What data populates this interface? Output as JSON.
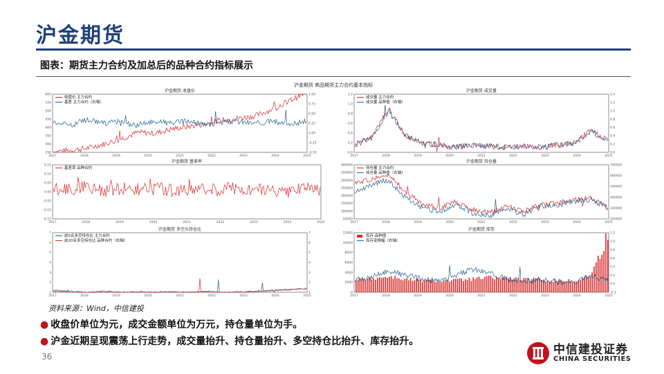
{
  "slide": {
    "title": "沪金期货",
    "caption": "图表：期货主力合约及加总后的品种合约指标展示",
    "source": "资料来源：Wind，中信建投",
    "bullets": [
      "收盘价单位为元，成交金额单位为万元，持仓量单位为手。",
      "沪金近期呈现震荡上行走势，成交量抬升、持仓量抬升、多空持仓比抬升、库存抬升。"
    ],
    "page_number": "36"
  },
  "logo": {
    "name_cn": "中信建投证券",
    "name_en": "CHINA SECURITIES",
    "color": "#c0121d"
  },
  "colors": {
    "title": "#1f3f7a",
    "red": "#d62728",
    "blue": "#1f5f8b"
  },
  "figure": {
    "suptitle": "沪金期货  商品期货主力合约基本指标"
  },
  "chart_data": [
    {
      "type": "line",
      "title": "沪金期货 收盘价",
      "x_ticks": [
        "2017",
        "2018",
        "2019",
        "2020",
        "2021",
        "2022",
        "2023",
        "2024",
        "2025"
      ],
      "y_ticks_left": [
        "600",
        "550",
        "500",
        "450",
        "400",
        "350",
        "300",
        "250"
      ],
      "y_ticks_right": [
        "1.00",
        "0.75",
        "0.50",
        "0.25",
        "0.00",
        "-0.25",
        "-0.50"
      ],
      "series": [
        {
          "name": "收盘价 主力合约",
          "axis": "left",
          "color": "#d62728",
          "trend": [
            255,
            262,
            275,
            300,
            330,
            370,
            365,
            390,
            405,
            420,
            445,
            455,
            470,
            510,
            560,
            610
          ]
        },
        {
          "name": "基差 主力合约（右轴）",
          "axis": "right",
          "color": "#1f5f8b",
          "trend": [
            0.3,
            0.2,
            0.35,
            0.25,
            0.3,
            0.2,
            0.3,
            0.25,
            0.3,
            0.2,
            0.28,
            0.3,
            0.25,
            0.3,
            0.22,
            0.3
          ]
        }
      ]
    },
    {
      "type": "line",
      "title": "沪金期货 成交量",
      "x_ticks": [
        "2017",
        "2018",
        "2019",
        "2020",
        "2021",
        "2022",
        "2023",
        "2024",
        "2025"
      ],
      "y_ticks_left": [
        "1.2",
        "1.0",
        "0.8",
        "0.6",
        "0.4",
        "0.2",
        "0.0"
      ],
      "y_ticks_right": [
        "1.4",
        "1.2",
        "1.0",
        "0.8",
        "0.6",
        "0.4",
        "0.2",
        "0.0"
      ],
      "series": [
        {
          "name": "成交量 主力合约",
          "axis": "left",
          "color": "#d62728",
          "trend": [
            0.15,
            0.3,
            0.9,
            0.35,
            0.2,
            0.15,
            0.1,
            0.15,
            0.12,
            0.1,
            0.12,
            0.1,
            0.15,
            0.2,
            0.45,
            0.25
          ]
        },
        {
          "name": "成交量 品种值（右轴）",
          "axis": "right",
          "color": "#1f5f8b",
          "trend": [
            0.18,
            0.35,
            1.0,
            0.4,
            0.22,
            0.18,
            0.12,
            0.18,
            0.15,
            0.12,
            0.14,
            0.12,
            0.18,
            0.22,
            0.5,
            0.28
          ]
        }
      ]
    },
    {
      "type": "line",
      "title": "沪金期货 基差率",
      "x_ticks": [
        "2017",
        "2018",
        "2019",
        "2020",
        "2021",
        "2022",
        "2023",
        "2024",
        "2025"
      ],
      "y_ticks_left": [
        "0.15",
        "0.10",
        "0.05",
        "0.00",
        "-0.05",
        "-0.10",
        "-0.15"
      ],
      "series": [
        {
          "name": "基差率 品种合约",
          "axis": "left",
          "color": "#d62728",
          "trend": [
            0.02,
            0.01,
            0.03,
            0.0,
            0.02,
            0.01,
            0.02,
            0.0,
            0.02,
            0.01,
            0.02,
            0.01,
            0.02,
            0.0,
            0.02,
            0.01
          ]
        }
      ]
    },
    {
      "type": "line",
      "title": "沪金期货 持仓量",
      "x_ticks": [
        "2017",
        "2018",
        "2019",
        "2020",
        "2021",
        "2022",
        "2023",
        "2024",
        "2025"
      ],
      "y_ticks_left": [
        "400000",
        "350000",
        "300000",
        "250000",
        "200000",
        "150000",
        "100000",
        "50000"
      ],
      "y_ticks_right": [
        "700000",
        "600000",
        "500000",
        "400000",
        "300000",
        "200000"
      ],
      "series": [
        {
          "name": "持仓量 主力合约",
          "axis": "left",
          "color": "#d62728",
          "trend": [
            280000,
            310000,
            340000,
            220000,
            150000,
            120000,
            160000,
            110000,
            90000,
            130000,
            100000,
            140000,
            150000,
            170000,
            190000,
            120000
          ]
        },
        {
          "name": "持仓量 品种值（右轴）",
          "axis": "right",
          "color": "#1f5f8b",
          "trend": [
            450000,
            520000,
            560000,
            400000,
            300000,
            260000,
            330000,
            250000,
            230000,
            300000,
            240000,
            320000,
            330000,
            360000,
            380000,
            300000
          ]
        }
      ]
    },
    {
      "type": "line",
      "title": "沪金期货 多空头持仓比",
      "x_ticks": [
        "2017",
        "2018",
        "2019",
        "2020",
        "2021",
        "2022",
        "2023",
        "2024",
        "2025"
      ],
      "y_ticks_left": [
        "7",
        "6",
        "5",
        "4",
        "3",
        "2",
        "1"
      ],
      "y_ticks_right": [
        "7",
        "6",
        "5",
        "4",
        "3",
        "2",
        "1"
      ],
      "series": [
        {
          "name": "前5名多空持仓比 主力合约",
          "axis": "left",
          "color": "#1f5f8b",
          "trend": [
            1.2,
            1.1,
            1.0,
            1.1,
            1.0,
            1.05,
            1.0,
            1.05,
            1.0,
            1.1,
            1.0,
            1.05,
            1.1,
            1.2,
            1.3,
            1.4
          ]
        },
        {
          "name": "前20名多空持仓比 品种合约（右轴）",
          "axis": "right",
          "color": "#d62728",
          "trend": [
            1.1,
            1.05,
            1.0,
            1.05,
            1.0,
            1.0,
            1.0,
            1.0,
            1.0,
            1.05,
            1.0,
            1.0,
            1.05,
            1.15,
            1.25,
            1.35
          ]
        }
      ]
    },
    {
      "type": "bar",
      "title": "沪金期货 库存",
      "x_ticks": [
        "2017",
        "2018",
        "2019",
        "2020",
        "2021",
        "2022",
        "2023",
        "2024",
        "2025"
      ],
      "y_ticks_left": [
        "12000",
        "10000",
        "8000",
        "6000",
        "4000",
        "2000",
        "0"
      ],
      "y_ticks_right": [
        "1.2",
        "1.0",
        "0.8",
        "0.6",
        "0.4",
        "0.2",
        "0.0",
        "-0.2"
      ],
      "series": [
        {
          "name": "库存 品种值",
          "axis": "left",
          "color": "#d62728",
          "kind": "bar",
          "trend": [
            2500,
            2800,
            3200,
            2600,
            2400,
            2300,
            2500,
            2700,
            3000,
            2900,
            2600,
            2500,
            2400,
            2300,
            3500,
            11500
          ]
        },
        {
          "name": "库存变换幅（右轴）",
          "axis": "right",
          "color": "#1f5f8b",
          "kind": "line",
          "trend": [
            0.1,
            0.15,
            0.3,
            0.2,
            0.1,
            0.05,
            0.2,
            0.35,
            0.25,
            0.1,
            0.05,
            0.1,
            0.05,
            0.0,
            0.2,
            0.05
          ]
        }
      ]
    }
  ]
}
